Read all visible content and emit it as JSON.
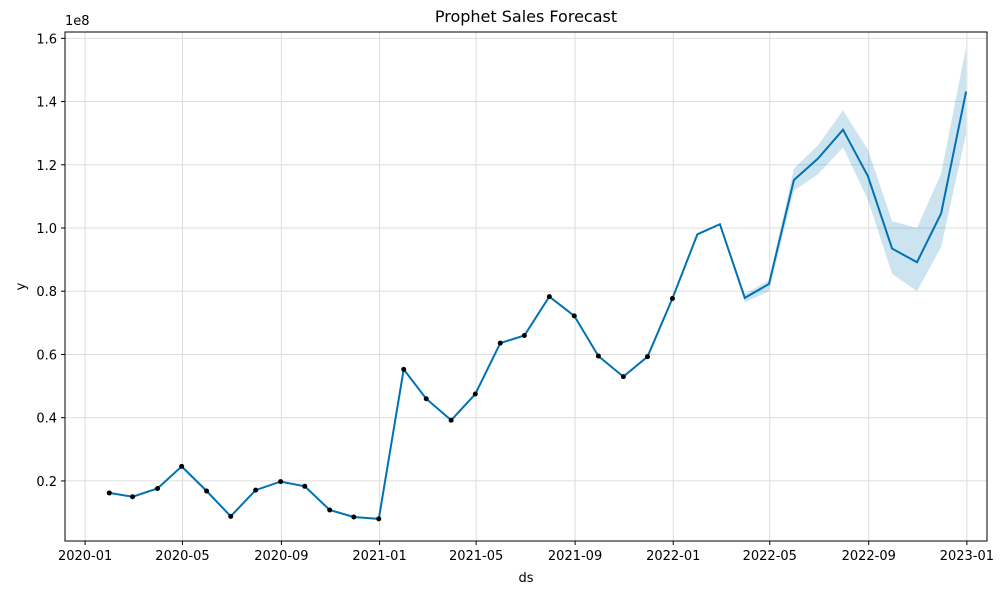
{
  "chart_data": {
    "type": "line",
    "title": "Prophet Sales Forecast",
    "xlabel": "ds",
    "ylabel": "y",
    "y_scale_note": "1e8",
    "xlim": [
      "2019-12-07",
      "2023-01-26"
    ],
    "ylim": [
      0.01,
      1.62
    ],
    "grid": true,
    "x_ticks": [
      "2020-01",
      "2020-05",
      "2020-09",
      "2021-01",
      "2021-05",
      "2021-09",
      "2022-01",
      "2022-05",
      "2022-09",
      "2023-01"
    ],
    "x_tick_dates": [
      "2020-01-01",
      "2020-05-01",
      "2020-09-01",
      "2021-01-01",
      "2021-05-01",
      "2021-09-01",
      "2022-01-01",
      "2022-05-01",
      "2022-09-01",
      "2023-01-01"
    ],
    "y_ticks": [
      "0.2",
      "0.4",
      "0.6",
      "0.8",
      "1.0",
      "1.2",
      "1.4",
      "1.6"
    ],
    "y_tick_values": [
      0.2,
      0.4,
      0.6,
      0.8,
      1.0,
      1.2,
      1.4,
      1.6
    ],
    "colors": {
      "forecast": "#0072B2",
      "interval": "#0072B2",
      "observed": "#000000",
      "grid": "#dddddd"
    },
    "observed": {
      "x": [
        "2020-01-31",
        "2020-02-29",
        "2020-03-31",
        "2020-04-30",
        "2020-05-31",
        "2020-06-30",
        "2020-07-31",
        "2020-08-31",
        "2020-09-30",
        "2020-10-31",
        "2020-11-30",
        "2020-12-31",
        "2021-01-31",
        "2021-02-28",
        "2021-03-31",
        "2021-04-30",
        "2021-05-31",
        "2021-06-30",
        "2021-07-31",
        "2021-08-31",
        "2021-09-30",
        "2021-10-31",
        "2021-11-30",
        "2021-12-31"
      ],
      "y": [
        0.162,
        0.15,
        0.176,
        0.246,
        0.168,
        0.088,
        0.171,
        0.198,
        0.183,
        0.108,
        0.086,
        0.08,
        0.553,
        0.46,
        0.392,
        0.475,
        0.636,
        0.66,
        0.783,
        0.722,
        0.595,
        0.53,
        0.593,
        0.777
      ]
    },
    "forecast": {
      "x": [
        "2020-01-31",
        "2020-02-29",
        "2020-03-31",
        "2020-04-30",
        "2020-05-31",
        "2020-06-30",
        "2020-07-31",
        "2020-08-31",
        "2020-09-30",
        "2020-10-31",
        "2020-11-30",
        "2020-12-31",
        "2021-01-31",
        "2021-02-28",
        "2021-03-31",
        "2021-04-30",
        "2021-05-31",
        "2021-06-30",
        "2021-07-31",
        "2021-08-31",
        "2021-09-30",
        "2021-10-31",
        "2021-11-30",
        "2021-12-31",
        "2022-01-31",
        "2022-02-28",
        "2022-03-31",
        "2022-04-30",
        "2022-05-31",
        "2022-06-30",
        "2022-07-31",
        "2022-08-31",
        "2022-09-30",
        "2022-10-31",
        "2022-11-30",
        "2022-12-31"
      ],
      "yhat": [
        0.162,
        0.15,
        0.176,
        0.246,
        0.168,
        0.088,
        0.171,
        0.198,
        0.183,
        0.108,
        0.086,
        0.08,
        0.553,
        0.46,
        0.392,
        0.475,
        0.636,
        0.66,
        0.783,
        0.722,
        0.595,
        0.53,
        0.593,
        0.777,
        0.98,
        1.012,
        0.779,
        0.823,
        1.152,
        1.22,
        1.311,
        1.164,
        0.935,
        0.892,
        1.046,
        1.432
      ],
      "yhat_lower": [
        0.162,
        0.15,
        0.176,
        0.246,
        0.168,
        0.088,
        0.171,
        0.198,
        0.183,
        0.108,
        0.086,
        0.08,
        0.553,
        0.46,
        0.392,
        0.475,
        0.636,
        0.66,
        0.783,
        0.722,
        0.595,
        0.53,
        0.593,
        0.777,
        0.978,
        1.01,
        0.765,
        0.8,
        1.118,
        1.17,
        1.255,
        1.09,
        0.855,
        0.8,
        0.94,
        1.298
      ],
      "yhat_upper": [
        0.162,
        0.15,
        0.176,
        0.246,
        0.168,
        0.088,
        0.171,
        0.198,
        0.183,
        0.108,
        0.086,
        0.08,
        0.553,
        0.46,
        0.392,
        0.475,
        0.636,
        0.66,
        0.783,
        0.722,
        0.595,
        0.53,
        0.593,
        0.777,
        0.982,
        1.014,
        0.792,
        0.835,
        1.188,
        1.262,
        1.372,
        1.248,
        1.022,
        1.0,
        1.172,
        1.572
      ]
    }
  }
}
